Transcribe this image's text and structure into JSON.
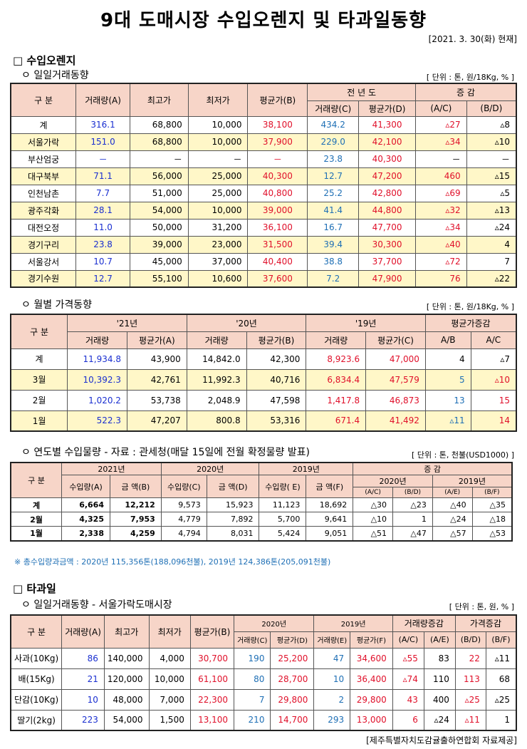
{
  "title": "9대 도매시장 수입오렌지 및 타과일동향",
  "date": "[2021. 3. 30(화) 현재]",
  "section1": {
    "heading": "□  수입오렌지",
    "sub": "ㅇ  일일거래동향",
    "unit": "[ 단위 : 톤, 원/18Kg, % ]",
    "headers": [
      "구    분",
      "거래량(A)",
      "최고가",
      "최저가",
      "평균가(B)",
      "전 년 도",
      "증    감",
      "거래량(C)",
      "평균가(D)",
      "(A/C)",
      "(B/D)"
    ],
    "rows": [
      [
        "계",
        "316.1",
        "68,800",
        "10,000",
        "38,100",
        "434.2",
        "41,300",
        "▵27",
        "▵8"
      ],
      [
        "서울가락",
        "151.0",
        "68,800",
        "10,000",
        "37,900",
        "229.0",
        "42,100",
        "▵34",
        "▵10"
      ],
      [
        "부산엄궁",
        "－",
        "－",
        "－",
        "－",
        "23.8",
        "40,300",
        "－",
        "－"
      ],
      [
        "대구북부",
        "71.1",
        "56,000",
        "25,000",
        "40,300",
        "12.7",
        "47,200",
        "460",
        "▵15"
      ],
      [
        "인천남촌",
        "7.7",
        "51,000",
        "25,000",
        "40,800",
        "25.2",
        "42,800",
        "▵69",
        "▵5"
      ],
      [
        "광주각화",
        "28.1",
        "54,000",
        "10,000",
        "39,000",
        "41.4",
        "44,800",
        "▵32",
        "▵13"
      ],
      [
        "대전오정",
        "11.0",
        "50,000",
        "31,200",
        "36,100",
        "16.7",
        "47,700",
        "▵34",
        "▵24"
      ],
      [
        "경기구리",
        "23.8",
        "39,000",
        "23,000",
        "31,500",
        "39.4",
        "30,300",
        "▵40",
        "4"
      ],
      [
        "서울강서",
        "10.7",
        "45,000",
        "37,000",
        "40,400",
        "38.8",
        "37,700",
        "▵72",
        "7"
      ],
      [
        "경기수원",
        "12.7",
        "55,100",
        "10,600",
        "37,600",
        "7.2",
        "47,900",
        "76",
        "▵22"
      ]
    ]
  },
  "section2": {
    "sub": "ㅇ  월별 가격동향",
    "unit": "[ 단위 : 톤, 원/18Kg, % ]",
    "headers": [
      "구    분",
      "'21년",
      "'20년",
      "'19년",
      "평균가증감",
      "거래량",
      "평균가(A)",
      "거래량",
      "평균가(B)",
      "거래량",
      "평균가(C)",
      "A/B",
      "A/C"
    ],
    "rows": [
      [
        "계",
        "11,934.8",
        "43,900",
        "14,842.0",
        "42,300",
        "8,923.6",
        "47,000",
        "4",
        "▵7"
      ],
      [
        "3월",
        "10,392.3",
        "42,761",
        "11,992.3",
        "40,716",
        "6,834.4",
        "47,579",
        "5",
        "▵10"
      ],
      [
        "2월",
        "1,020.2",
        "53,738",
        "2,048.9",
        "47,598",
        "1,417.8",
        "46,873",
        "13",
        "15"
      ],
      [
        "1월",
        "522.3",
        "47,207",
        "800.8",
        "53,316",
        "671.4",
        "41,492",
        "▵11",
        "14"
      ]
    ]
  },
  "section3": {
    "sub": "ㅇ  연도별 수입물량 - 자료 : 관세청(매달 15일에 전월 확정물량 발표)",
    "unit": "[ 단위 : 톤, 천불(USD1000) ]",
    "headers": [
      "구 분",
      "2021년",
      "2020년",
      "2019년",
      "증    감",
      "수입량(A)",
      "금  액(B)",
      "수입량(C)",
      "금  액(D)",
      "수입량( E)",
      "금  액(F)",
      "2020년",
      "2019년",
      "(A/C)",
      "(B/D)",
      "(A/E)",
      "(B/F)"
    ],
    "rows": [
      [
        "계",
        "6,664",
        "12,212",
        "9,573",
        "15,923",
        "11,123",
        "18,692",
        "△30",
        "△23",
        "△40",
        "△35"
      ],
      [
        "2월",
        "4,325",
        "7,953",
        "4,779",
        "7,892",
        "5,700",
        "9,641",
        "△10",
        "1",
        "△24",
        "△18"
      ],
      [
        "1월",
        "2,338",
        "4,259",
        "4,794",
        "8,031",
        "5,424",
        "9,051",
        "△51",
        "△47",
        "△57",
        "△53"
      ]
    ],
    "note": "※ 총수입량과금액 : 2020년 115,356톤(188,096천불),   2019년 124,386톤(205,091천불)"
  },
  "section4": {
    "heading": "□  타과일",
    "sub": "ㅇ  일일거래동향 - 서울가락도매시장",
    "unit": "[ 단위 : 톤, 원, % ]",
    "headers": [
      "구  분",
      "거래량(A)",
      "최고가",
      "최저가",
      "평균가(B)",
      "2020년",
      "2019년",
      "거래량증감",
      "가격증감",
      "거래량(C)",
      "평균가(D)",
      "거래량(E)",
      "평균가(F)",
      "(A/C)",
      "(A/E)",
      "(B/D)",
      "(B/F)"
    ],
    "rows": [
      [
        "사과(10Kg)",
        "86",
        "140,000",
        "4,000",
        "30,700",
        "190",
        "25,200",
        "47",
        "34,600",
        "▵55",
        "83",
        "22",
        "▵11"
      ],
      [
        "배(15Kg)",
        "21",
        "120,000",
        "10,000",
        "61,100",
        "80",
        "28,700",
        "10",
        "36,400",
        "▵74",
        "110",
        "113",
        "68"
      ],
      [
        "단감(10Kg)",
        "10",
        "48,000",
        "7,000",
        "22,300",
        "7",
        "29,800",
        "2",
        "29,800",
        "43",
        "400",
        "▵25",
        "▵25"
      ],
      [
        "딸기(2kg)",
        "223",
        "54,000",
        "1,500",
        "13,100",
        "210",
        "14,700",
        "293",
        "13,000",
        "6",
        "▵24",
        "▵11",
        "1"
      ]
    ]
  },
  "credit": "[제주특별자치도감귤출하연합회 자료제공]"
}
